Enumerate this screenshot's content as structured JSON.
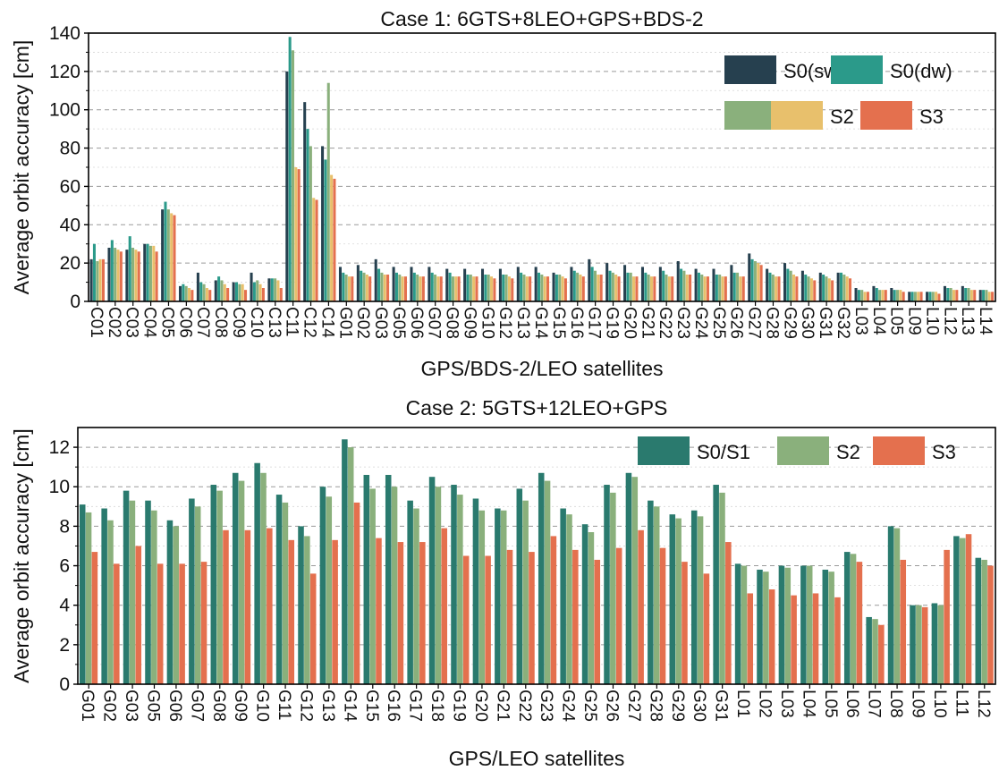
{
  "chart_data": [
    {
      "type": "bar",
      "title": "Case 1: 6GTS+8LEO+GPS+BDS-2",
      "xlabel": "GPS/BDS-2/LEO satellites",
      "ylabel": "Average orbit accuracy [cm]",
      "ylim": [
        0,
        140
      ],
      "yticks": [
        0,
        20,
        40,
        60,
        80,
        100,
        120,
        140
      ],
      "grid": "horizontal-dashed",
      "legend_position": "top-right",
      "categories": [
        "C01",
        "C02",
        "C03",
        "C04",
        "C05",
        "C06",
        "C07",
        "C08",
        "C09",
        "C10",
        "C13",
        "C11",
        "C12",
        "C14",
        "G01",
        "G02",
        "G03",
        "G05",
        "G06",
        "G07",
        "G08",
        "G09",
        "G10",
        "G12",
        "G13",
        "G14",
        "G15",
        "G16",
        "G17",
        "G19",
        "G20",
        "G21",
        "G22",
        "G23",
        "G24",
        "G25",
        "G26",
        "G27",
        "G28",
        "G29",
        "G30",
        "G31",
        "G32",
        "L03",
        "L04",
        "L05",
        "L09",
        "L10",
        "L12",
        "L13",
        "L14"
      ],
      "series": [
        {
          "name": "S0(sw)",
          "color": "#26404f",
          "values": [
            22,
            28,
            27,
            30,
            48,
            8,
            15,
            11,
            10,
            15,
            12,
            120,
            104,
            81,
            18,
            19,
            22,
            18,
            18,
            18,
            17,
            17,
            17,
            17,
            18,
            18,
            15,
            18,
            22,
            20,
            19,
            18,
            18,
            21,
            17,
            17,
            19,
            25,
            17,
            20,
            16,
            15,
            15,
            7,
            8,
            7,
            5,
            5,
            8,
            8,
            6
          ]
        },
        {
          "name": "S0(dw)",
          "color": "#2b9a8a",
          "values": [
            30,
            32,
            34,
            30,
            52,
            9,
            10,
            13,
            10,
            10,
            12,
            138,
            90,
            74,
            15,
            16,
            17,
            15,
            15,
            15,
            15,
            14,
            14,
            14,
            15,
            15,
            14,
            16,
            18,
            16,
            15,
            15,
            16,
            17,
            15,
            14,
            15,
            22,
            15,
            17,
            14,
            14,
            15,
            6,
            7,
            6,
            5,
            5,
            7,
            7,
            6
          ]
        },
        {
          "name": "S1",
          "color": "#8ab07c",
          "values": [
            21,
            28,
            28,
            29,
            48,
            8,
            9,
            11,
            9,
            11,
            12,
            131,
            81,
            114,
            14,
            15,
            15,
            14,
            14,
            14,
            13,
            14,
            14,
            14,
            14,
            14,
            14,
            15,
            16,
            15,
            15,
            14,
            14,
            16,
            14,
            14,
            15,
            21,
            14,
            16,
            13,
            13,
            14,
            6,
            6,
            6,
            5,
            5,
            7,
            7,
            6
          ]
        },
        {
          "name": "S2",
          "color": "#e8c06c",
          "values": [
            22,
            27,
            27,
            29,
            46,
            7,
            7,
            9,
            9,
            9,
            11,
            70,
            54,
            66,
            13,
            14,
            14,
            13,
            13,
            13,
            13,
            13,
            13,
            13,
            13,
            13,
            13,
            14,
            14,
            14,
            13,
            13,
            13,
            14,
            13,
            13,
            13,
            20,
            13,
            14,
            12,
            12,
            13,
            5,
            6,
            6,
            5,
            5,
            6,
            6,
            5
          ]
        },
        {
          "name": "S3",
          "color": "#e4704e",
          "values": [
            22,
            26,
            26,
            26,
            45,
            6,
            6,
            7,
            6,
            7,
            7,
            69,
            53,
            64,
            13,
            13,
            14,
            13,
            13,
            13,
            13,
            13,
            12,
            12,
            13,
            13,
            12,
            13,
            14,
            13,
            13,
            13,
            13,
            14,
            13,
            13,
            13,
            19,
            13,
            13,
            11,
            11,
            12,
            5,
            6,
            5,
            5,
            4,
            6,
            6,
            5
          ]
        }
      ]
    },
    {
      "type": "bar",
      "title": "Case 2: 5GTS+12LEO+GPS",
      "xlabel": "GPS/LEO satellites",
      "ylabel": "Average orbit accuracy [cm]",
      "ylim": [
        0,
        13
      ],
      "yticks": [
        0,
        2,
        4,
        6,
        8,
        10,
        12
      ],
      "grid": "horizontal-dashed",
      "legend_position": "top-right",
      "categories": [
        "G01",
        "G02",
        "G03",
        "G05",
        "G06",
        "G07",
        "G08",
        "G09",
        "G10",
        "G11",
        "G12",
        "G13",
        "G14",
        "G15",
        "G16",
        "G17",
        "G18",
        "G19",
        "G20",
        "G21",
        "G22",
        "G23",
        "G24",
        "G25",
        "G26",
        "G27",
        "G28",
        "G29",
        "G30",
        "G31",
        "L01",
        "L02",
        "L03",
        "L04",
        "L05",
        "L06",
        "L07",
        "L08",
        "L09",
        "L10",
        "L11",
        "L12"
      ],
      "series": [
        {
          "name": "S0/S1",
          "color": "#2a7a6e",
          "values": [
            9.1,
            8.9,
            9.8,
            9.3,
            8.3,
            9.4,
            10.1,
            10.7,
            11.2,
            9.6,
            8.0,
            10.0,
            12.4,
            10.6,
            10.6,
            9.3,
            10.5,
            10.1,
            9.4,
            8.9,
            9.9,
            10.7,
            8.9,
            8.1,
            10.1,
            10.7,
            9.3,
            8.6,
            8.8,
            10.1,
            6.1,
            5.8,
            6.0,
            6.0,
            5.8,
            6.7,
            3.4,
            8.0,
            4.0,
            4.1,
            7.5,
            6.4
          ]
        },
        {
          "name": "S2",
          "color": "#8ab07c",
          "values": [
            8.7,
            8.3,
            9.3,
            8.8,
            8.0,
            9.0,
            9.8,
            10.3,
            10.7,
            9.2,
            7.5,
            9.5,
            12.0,
            9.9,
            10.0,
            8.9,
            10.0,
            9.6,
            8.8,
            8.8,
            9.3,
            10.3,
            8.6,
            7.7,
            9.7,
            10.5,
            9.0,
            8.4,
            8.5,
            9.7,
            6.0,
            5.7,
            5.9,
            6.0,
            5.7,
            6.6,
            3.3,
            7.9,
            4.0,
            4.0,
            7.4,
            6.3
          ]
        },
        {
          "name": "S3",
          "color": "#e4704e",
          "values": [
            6.7,
            6.1,
            7.0,
            6.1,
            6.1,
            6.2,
            7.8,
            7.8,
            7.9,
            7.3,
            5.6,
            7.3,
            9.2,
            7.4,
            7.2,
            7.2,
            7.9,
            6.5,
            6.5,
            6.8,
            6.7,
            7.5,
            6.8,
            6.3,
            6.9,
            7.8,
            6.9,
            6.2,
            5.6,
            7.2,
            4.6,
            4.8,
            4.5,
            4.6,
            4.4,
            6.2,
            3.0,
            6.3,
            3.9,
            6.8,
            7.6,
            6.0
          ]
        }
      ]
    }
  ]
}
